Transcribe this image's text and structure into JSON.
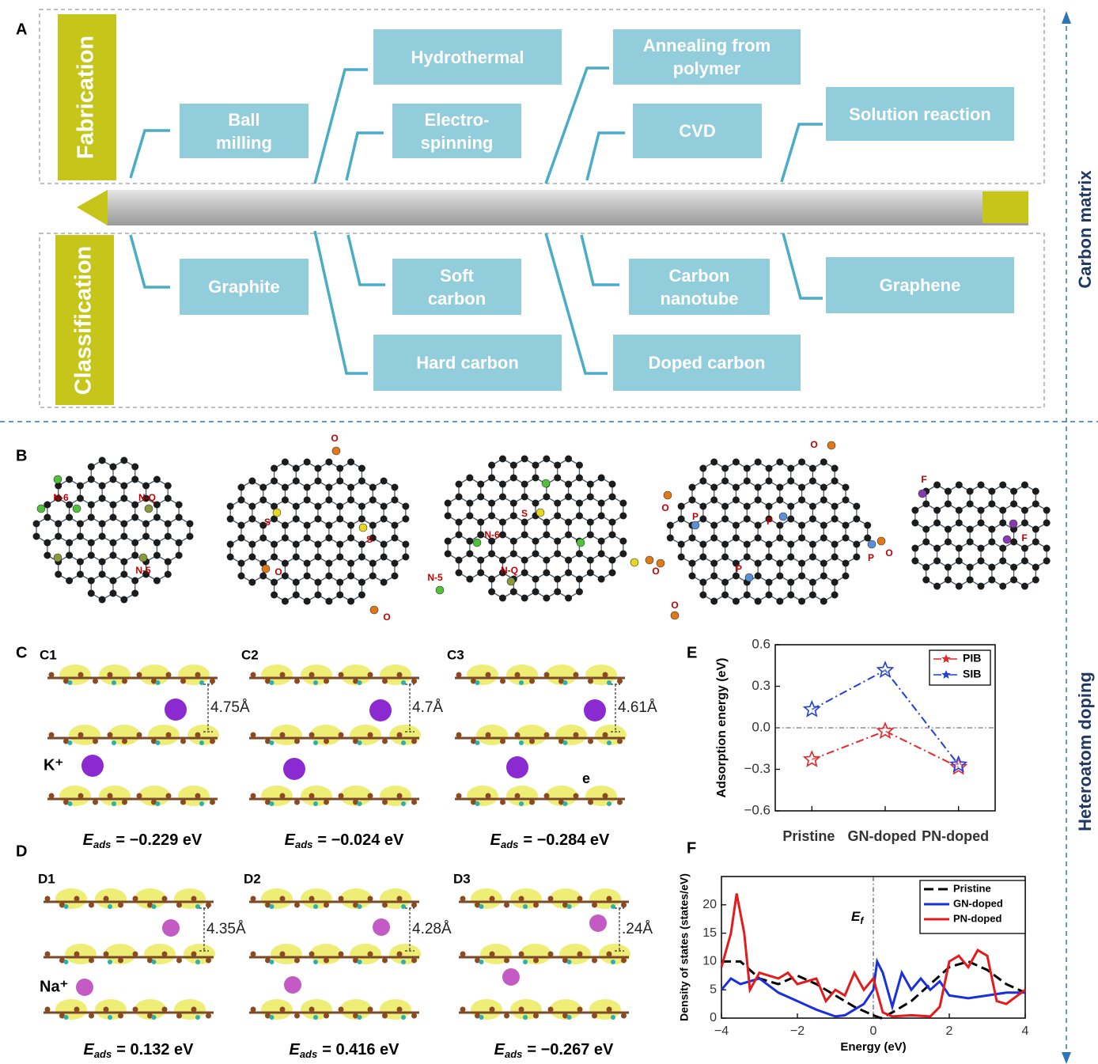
{
  "panel_labels": {
    "a": "A",
    "b": "B",
    "c": "C",
    "d": "D",
    "e": "E",
    "f": "F"
  },
  "side_labels": [
    "Carbon matrix",
    "Heteroatom doping"
  ],
  "panel_a": {
    "fabrication": {
      "label": "Fabrication",
      "steps": [
        "Ball milling",
        "Hydrothermal",
        "Electro-spinning",
        "Annealing from polymer",
        "CVD",
        "Solution reaction"
      ]
    },
    "classification": {
      "label": "Classification",
      "types": [
        "Graphite",
        "Soft carbon",
        "Hard carbon",
        "Carbon nanotube",
        "Doped carbon",
        "Graphene"
      ]
    }
  },
  "panel_b": {
    "structures": [
      {
        "labels": [
          "N-6",
          "N-Q",
          "N-5"
        ]
      },
      {
        "labels": [
          "O",
          "S",
          "S",
          "O",
          "O"
        ]
      },
      {
        "labels": [
          "S",
          "N-6",
          "N-5",
          "N-Q"
        ]
      },
      {
        "labels": [
          "O",
          "O",
          "P",
          "P",
          "O",
          "P",
          "P",
          "O",
          "O"
        ]
      },
      {
        "labels": [
          "F",
          "F"
        ]
      }
    ]
  },
  "panels_cd": {
    "electron_label": "e",
    "rows": [
      {
        "ion": "K⁺",
        "items": [
          {
            "label": "C1",
            "distance": "4.75Å",
            "eads": {
              "symbol": "E",
              "subscript": "ads",
              "text": "= −0.229 eV"
            }
          },
          {
            "label": "C2",
            "distance": "4.7Å",
            "eads": {
              "symbol": "E",
              "subscript": "ads",
              "text": "= −0.024 eV"
            }
          },
          {
            "label": "C3",
            "distance": "4.61Å",
            "eads": {
              "symbol": "E",
              "subscript": "ads",
              "text": "= −0.284 eV"
            }
          }
        ]
      },
      {
        "ion": "Na⁺",
        "items": [
          {
            "label": "D1",
            "distance": "4.35Å",
            "eads": {
              "symbol": "E",
              "subscript": "ads",
              "text": "= 0.132 eV"
            }
          },
          {
            "label": "D2",
            "distance": "4.28Å",
            "eads": {
              "symbol": "E",
              "subscript": "ads",
              "text": "= 0.416 eV"
            }
          },
          {
            "label": "D3",
            "distance": ".24Å",
            "eads": {
              "symbol": "E",
              "subscript": "ads",
              "text": "= −0.267 eV"
            }
          }
        ]
      }
    ]
  },
  "chart_data": [
    {
      "type": "line",
      "y_label": "Adsorption energy (eV)",
      "categories": [
        "Pristine",
        "GN-doped",
        "PN-doped"
      ],
      "ylim": [
        -0.6,
        0.6
      ],
      "yticks": [
        0.6,
        0.3,
        {
          "value": 0,
          "label": "0.0"
        },
        {
          "value": -0.3,
          "label": "−0.3"
        },
        {
          "value": -0.6,
          "label": "−0.6"
        }
      ],
      "reference_line": 0,
      "legend": "upper right",
      "series": [
        {
          "name": "PIB",
          "color": "#e8262a",
          "values": [
            -0.229,
            -0.024,
            -0.284
          ]
        },
        {
          "name": "SIB",
          "color": "#1f3fd8",
          "values": [
            0.132,
            0.416,
            -0.267
          ]
        }
      ]
    },
    {
      "type": "line",
      "x_label": "Energy (eV)",
      "y_label": "Density of states (states/eV)",
      "annotation": {
        "symbol": "E",
        "subscript": "f"
      },
      "reference_line": 0,
      "legend": "upper right",
      "xlim": [
        -4,
        4
      ],
      "xticks": [
        {
          "value": -4,
          "label": "−4"
        },
        {
          "value": -2,
          "label": "−2"
        },
        0,
        2,
        4
      ],
      "ylim": [
        0,
        25
      ],
      "yticks": [
        0,
        5,
        10,
        15,
        20
      ],
      "series": [
        {
          "name": "Pristine",
          "color": "#000000",
          "dash": "dashed",
          "x": [
            -4,
            -3.5,
            -3,
            -2.5,
            -2,
            -1.5,
            -1,
            -0.5,
            0,
            0.2,
            0.5,
            1,
            1.5,
            2,
            2.5,
            3,
            3.5,
            4
          ],
          "values": [
            10,
            10,
            7,
            6,
            7.5,
            6,
            4,
            2,
            0.5,
            0,
            1,
            3,
            6,
            9,
            10,
            8.5,
            6,
            4.5
          ]
        },
        {
          "name": "GN-doped",
          "color": "#1a2fe0",
          "dash": "solid",
          "x": [
            -4,
            -3.75,
            -3.5,
            -3,
            -2.5,
            -2,
            -1.5,
            -1,
            -0.75,
            -0.5,
            -0.25,
            0,
            0.1,
            0.25,
            0.5,
            0.75,
            1,
            1.25,
            1.5,
            1.75,
            2,
            2.5,
            3,
            3.5,
            4
          ],
          "values": [
            5,
            7,
            6,
            7,
            4.5,
            3,
            1.5,
            0.3,
            0.5,
            1.5,
            2.5,
            5,
            10,
            8,
            2,
            8,
            5,
            7,
            5,
            6.5,
            4,
            3.5,
            4,
            4.5,
            4.5
          ]
        },
        {
          "name": "PN-doped",
          "color": "#e51b1b",
          "dash": "solid",
          "x": [
            -4,
            -3.75,
            -3.6,
            -3.4,
            -3.25,
            -3,
            -2.5,
            -2.25,
            -2,
            -1.5,
            -1.25,
            -1,
            -0.75,
            -0.5,
            -0.25,
            0,
            0.25,
            0.5,
            1,
            1.5,
            1.75,
            2,
            2.25,
            2.5,
            2.75,
            3,
            3.25,
            3.5,
            4
          ],
          "values": [
            9,
            15,
            22,
            15,
            5,
            8,
            7,
            8,
            6,
            7,
            3,
            5,
            4,
            8,
            5,
            7,
            1,
            0.3,
            0.5,
            0.3,
            2,
            10,
            11,
            9,
            12,
            11,
            3,
            2.5,
            5
          ]
        }
      ]
    }
  ]
}
